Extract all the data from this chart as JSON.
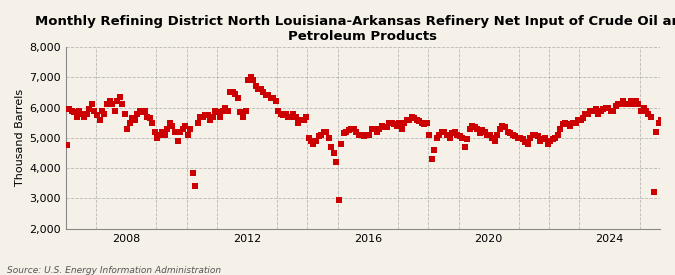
{
  "title": "Monthly Refining District North Louisiana-Arkansas Refinery Net Input of Crude Oil and\nPetroleum Products",
  "ylabel": "Thousand Barrels",
  "source": "Source: U.S. Energy Information Administration",
  "background_color": "#f5f0e8",
  "plot_background_color": "#f5f0e8",
  "marker_color": "#cc0000",
  "marker_size": 5,
  "ylim": [
    2000,
    8000
  ],
  "yticks": [
    2000,
    3000,
    4000,
    5000,
    6000,
    7000,
    8000
  ],
  "grid_color": "#aaaaaa",
  "title_fontsize": 9.5,
  "axis_fontsize": 8,
  "start_year": 2006,
  "start_month": 1,
  "values": [
    4750,
    5950,
    5900,
    5850,
    5700,
    5900,
    5800,
    5700,
    5800,
    5950,
    6100,
    5900,
    5750,
    5600,
    5900,
    5800,
    6100,
    6200,
    6100,
    5900,
    6200,
    6350,
    6100,
    5800,
    5300,
    5500,
    5650,
    5600,
    5800,
    5900,
    5850,
    5900,
    5700,
    5650,
    5500,
    5200,
    5000,
    5100,
    5200,
    5100,
    5300,
    5500,
    5400,
    5200,
    4900,
    5200,
    5300,
    5400,
    5100,
    5300,
    3850,
    3400,
    5500,
    5700,
    5700,
    5750,
    5750,
    5600,
    5700,
    5900,
    5850,
    5700,
    5900,
    6000,
    5900,
    6500,
    6500,
    6450,
    6300,
    5850,
    5700,
    5900,
    6900,
    7000,
    6900,
    6700,
    6600,
    6600,
    6500,
    6400,
    6400,
    6300,
    6300,
    6200,
    5900,
    5800,
    5750,
    5800,
    5700,
    5700,
    5800,
    5700,
    5500,
    5600,
    5600,
    5700,
    5000,
    4900,
    4800,
    4900,
    5050,
    5100,
    5200,
    5200,
    5000,
    4700,
    4500,
    4200,
    2950,
    4800,
    5150,
    5200,
    5250,
    5300,
    5300,
    5200,
    5100,
    5100,
    5050,
    5100,
    5100,
    5300,
    5300,
    5200,
    5300,
    5400,
    5350,
    5350,
    5500,
    5500,
    5450,
    5400,
    5500,
    5300,
    5500,
    5600,
    5600,
    5700,
    5650,
    5600,
    5550,
    5500,
    5450,
    5500,
    5100,
    4300,
    4600,
    5000,
    5100,
    5200,
    5200,
    5100,
    5000,
    5150,
    5200,
    5100,
    5050,
    5000,
    4700,
    4950,
    5300,
    5400,
    5350,
    5300,
    5150,
    5250,
    5200,
    5100,
    5100,
    5000,
    4900,
    5100,
    5300,
    5400,
    5350,
    5200,
    5150,
    5100,
    5050,
    5000,
    5000,
    4950,
    4850,
    4800,
    5000,
    5100,
    5100,
    5050,
    4900,
    4950,
    5000,
    4800,
    4900,
    4950,
    5000,
    5100,
    5300,
    5450,
    5500,
    5450,
    5400,
    5500,
    5500,
    5600,
    5600,
    5650,
    5800,
    5800,
    5900,
    5900,
    5950,
    5800,
    5900,
    5950,
    6000,
    6000,
    5900,
    5900,
    6050,
    6100,
    6100,
    6200,
    6100,
    6100,
    6200,
    6100,
    6200,
    6100,
    5900,
    6000,
    5900,
    5800,
    5700,
    3200,
    5200,
    5500,
    5600,
    5500
  ]
}
